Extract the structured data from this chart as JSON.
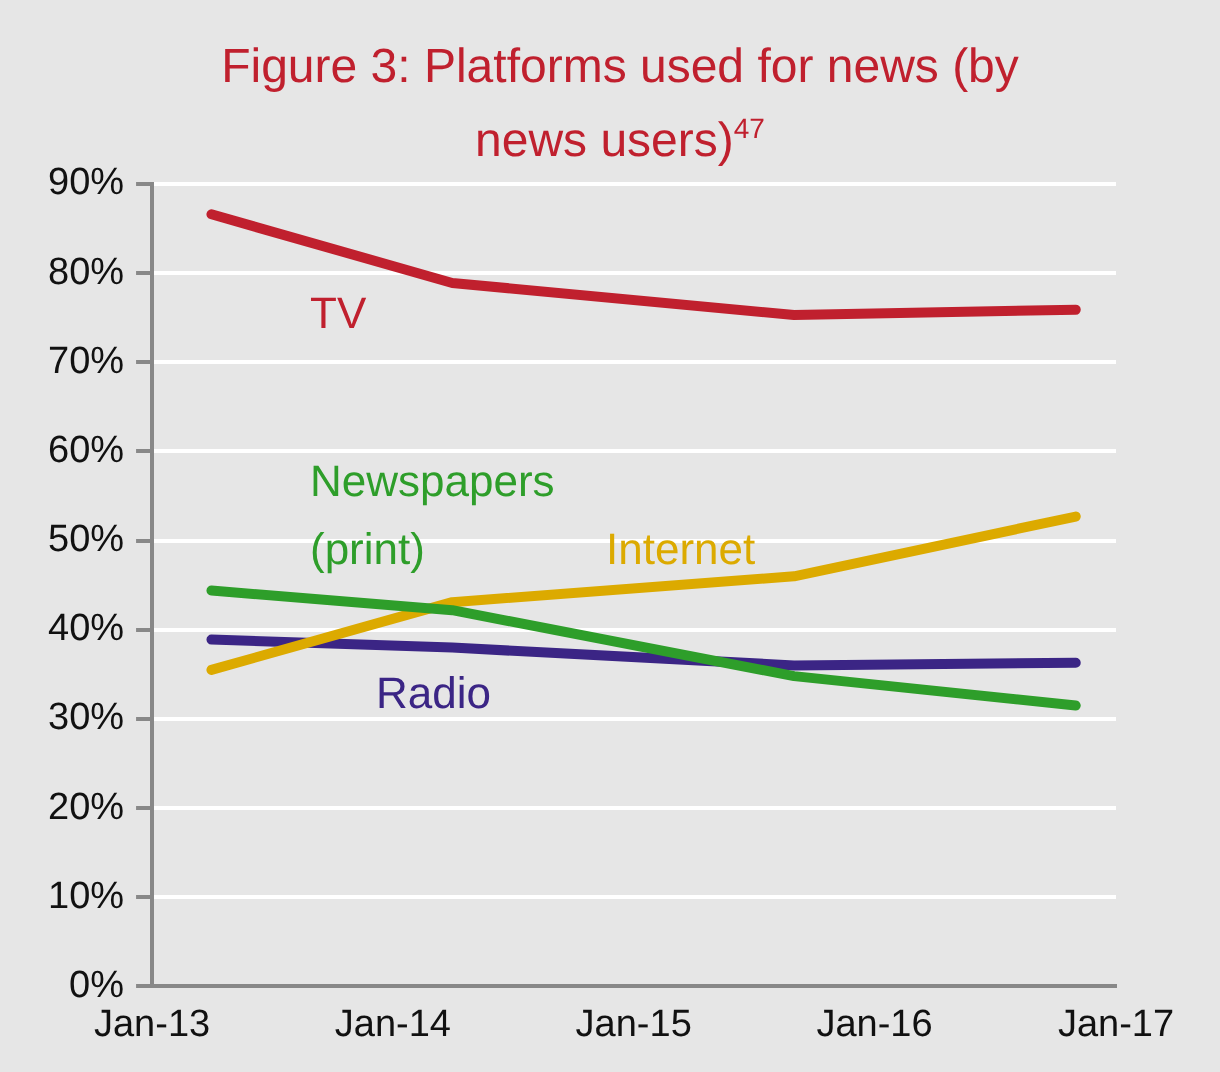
{
  "chart_data": {
    "type": "line",
    "title": "Figure 3: Platforms used for news (by news users)$^{47}$",
    "x": [
      "2013-04",
      "2014-04",
      "2015-09",
      "2016-11"
    ],
    "series": [
      {
        "name": "TV",
        "color": "#c0202e",
        "values": [
          86.6,
          78.9,
          75.3,
          75.9
        ]
      },
      {
        "name": "Newspapers (print)",
        "color": "#2e9e2a",
        "values": [
          44.4,
          42.2,
          34.8,
          31.5
        ]
      },
      {
        "name": "Internet",
        "color": "#dcaa00",
        "values": [
          35.5,
          43.1,
          46.0,
          52.7
        ]
      },
      {
        "name": "Radio",
        "color": "#3b2585",
        "values": [
          38.9,
          38.0,
          36.0,
          36.3
        ]
      }
    ],
    "xlim": [
      "2013-01",
      "2017-01"
    ],
    "xticks": [
      {
        "value": "2013-01",
        "label": "Jan-13"
      },
      {
        "value": "2014-01",
        "label": "Jan-14"
      },
      {
        "value": "2015-01",
        "label": "Jan-15"
      },
      {
        "value": "2016-01",
        "label": "Jan-16"
      },
      {
        "value": "2017-01",
        "label": "Jan-17"
      }
    ],
    "ylim": [
      0,
      90
    ],
    "yticks": [
      {
        "value": 0,
        "label": "0%"
      },
      {
        "value": 10,
        "label": "10%"
      },
      {
        "value": 20,
        "label": "20%"
      },
      {
        "value": 30,
        "label": "30%"
      },
      {
        "value": 40,
        "label": "40%"
      },
      {
        "value": 50,
        "label": "50%"
      },
      {
        "value": 60,
        "label": "60%"
      },
      {
        "value": 70,
        "label": "70%"
      },
      {
        "value": 80,
        "label": "80%"
      },
      {
        "value": 90,
        "label": "90%"
      }
    ],
    "grid": "y",
    "legend": false,
    "marker": "none",
    "line_style": "solid"
  }
}
